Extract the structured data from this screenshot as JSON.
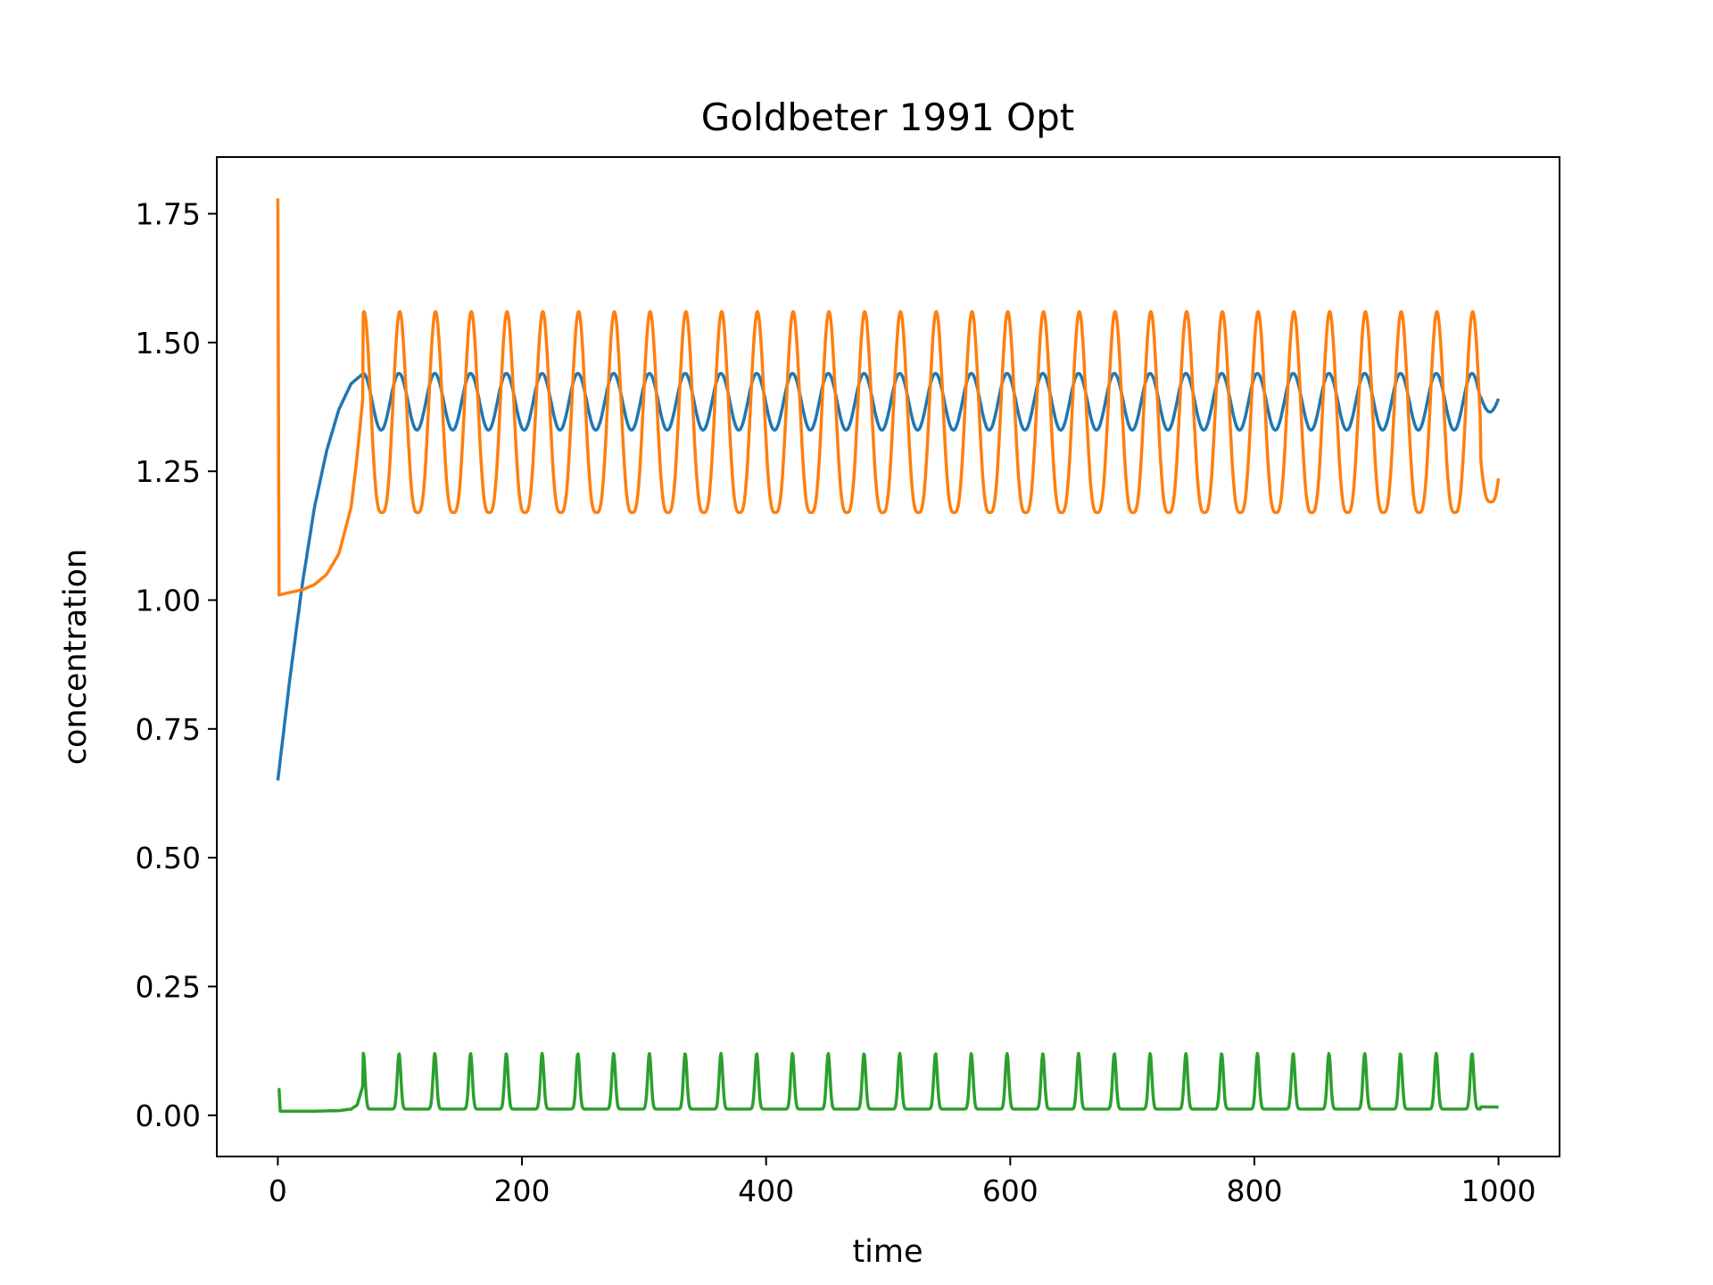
{
  "chart_data": {
    "type": "line",
    "title": "Goldbeter 1991 Opt",
    "xlabel": "time",
    "ylabel": "concentration",
    "xlim": [
      -50,
      1050
    ],
    "ylim": [
      -0.08,
      1.86
    ],
    "xticks": [
      0,
      200,
      400,
      600,
      800,
      1000
    ],
    "xtick_labels": [
      "0",
      "200",
      "400",
      "600",
      "800",
      "1000"
    ],
    "yticks": [
      0.0,
      0.25,
      0.5,
      0.75,
      1.0,
      1.25,
      1.5,
      1.75
    ],
    "ytick_labels": [
      "0.00",
      "0.25",
      "0.50",
      "0.75",
      "1.00",
      "1.25",
      "1.50",
      "1.75"
    ],
    "grid": false,
    "legend": "none",
    "period": 29.3,
    "series": [
      {
        "color": "#1f77b4",
        "x": [
          0,
          10,
          20,
          30,
          40,
          50,
          60,
          70,
          1000
        ],
        "y": [
          0.65,
          0.85,
          1.03,
          1.18,
          1.29,
          1.37,
          1.42,
          1.44,
          1.4
        ],
        "oscillation": {
          "start": 70,
          "min": 1.33,
          "max": 1.44
        }
      },
      {
        "color": "#ff7f0e",
        "x": [
          0,
          1,
          10,
          20,
          30,
          40,
          50,
          60,
          65,
          70,
          1000
        ],
        "y": [
          1.78,
          1.01,
          1.015,
          1.02,
          1.03,
          1.05,
          1.09,
          1.18,
          1.28,
          1.4,
          1.21
        ],
        "oscillation": {
          "start": 70,
          "min": 1.17,
          "max": 1.56
        }
      },
      {
        "color": "#2ca02c",
        "x": [
          0,
          1,
          2,
          10,
          30,
          50,
          60,
          65,
          70,
          1000
        ],
        "y": [
          0.05,
          0.05,
          0.008,
          0.008,
          0.008,
          0.009,
          0.012,
          0.02,
          0.06,
          0.02
        ],
        "oscillation": {
          "start": 70,
          "min": 0.012,
          "max": 0.12
        }
      }
    ]
  }
}
